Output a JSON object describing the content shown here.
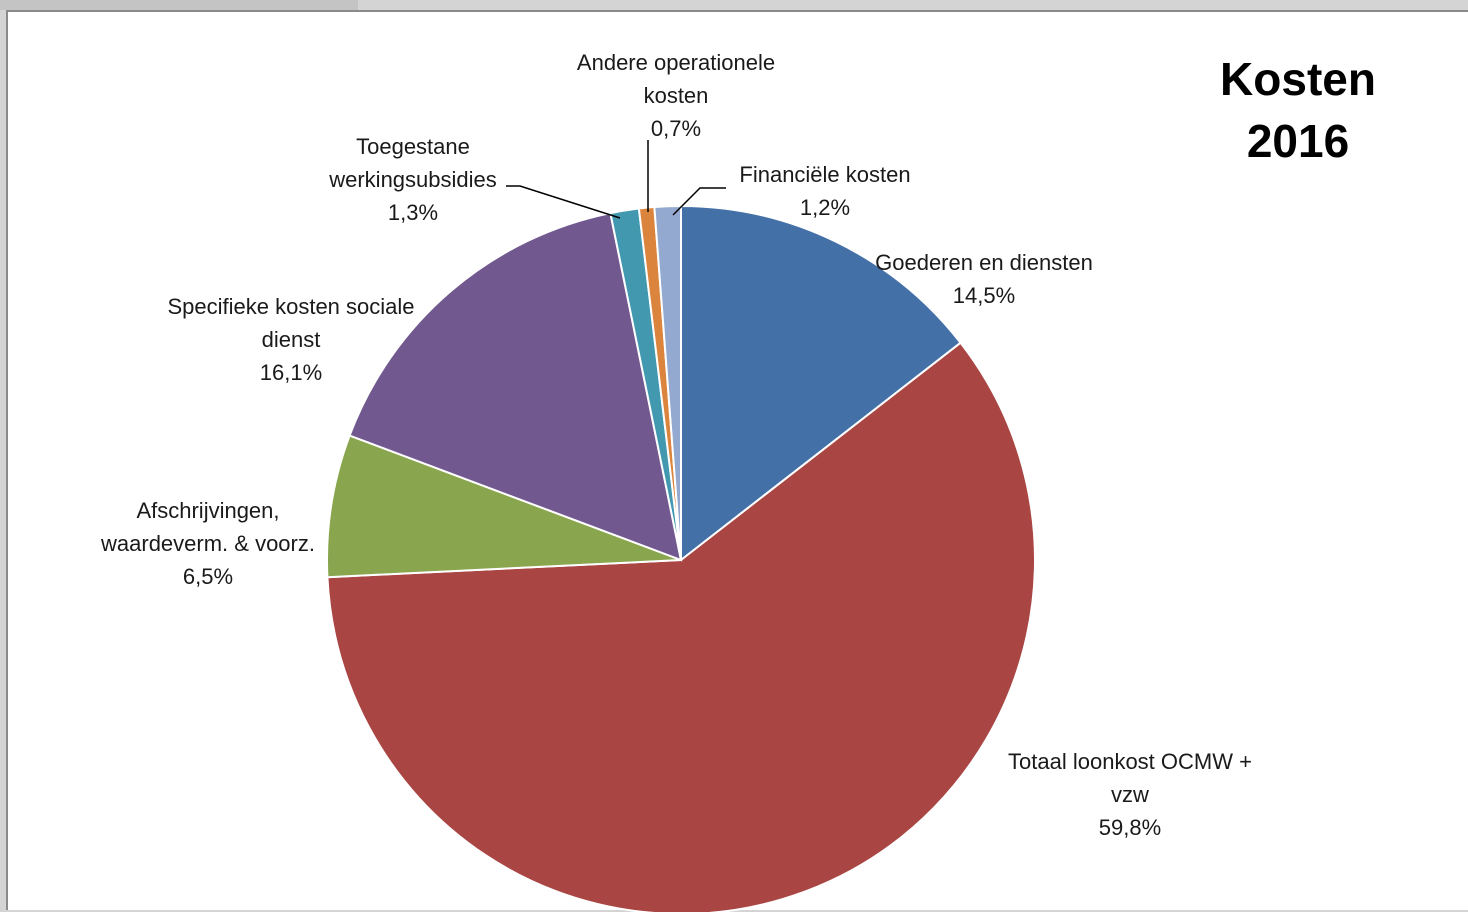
{
  "chart_data": {
    "type": "pie",
    "title": [
      "Kosten",
      "2016"
    ],
    "slices": [
      {
        "label_lines": [
          "Goederen  en diensten"
        ],
        "value_label": "14,5%",
        "value": 14.5,
        "color": "#4470a8"
      },
      {
        "label_lines": [
          "Totaal  loonkost  OCMW +",
          "vzw"
        ],
        "value_label": "59,8%",
        "value": 59.8,
        "color": "#a94543"
      },
      {
        "label_lines": [
          "Afschrijvingen,",
          "waardeverm.  & voorz."
        ],
        "value_label": "6,5%",
        "value": 6.5,
        "color": "#89a54e"
      },
      {
        "label_lines": [
          "Specifieke  kosten  sociale",
          "dienst"
        ],
        "value_label": "16,1%",
        "value": 16.1,
        "color": "#71588f"
      },
      {
        "label_lines": [
          "Toegestane",
          "werkingsubsidies"
        ],
        "value_label": "1,3%",
        "value": 1.3,
        "color": "#4298af"
      },
      {
        "label_lines": [
          "Andere  operationele",
          "kosten"
        ],
        "value_label": "0,7%",
        "value": 0.7,
        "color": "#db843d"
      },
      {
        "label_lines": [
          "Financiële  kosten"
        ],
        "value_label": "1,2%",
        "value": 1.2,
        "color": "#93a9cf"
      }
    ]
  }
}
